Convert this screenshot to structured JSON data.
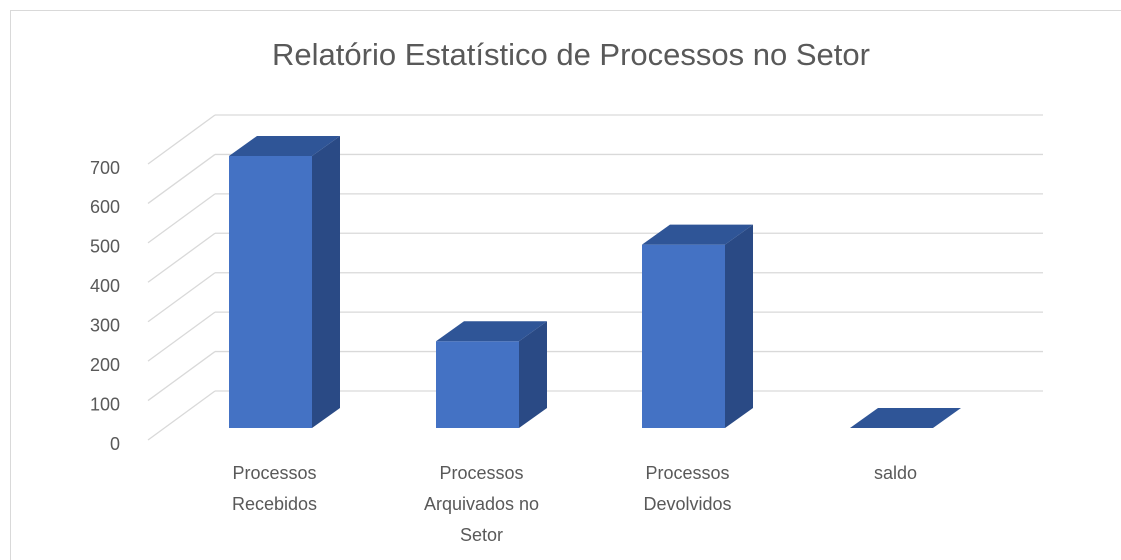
{
  "chart_data": {
    "type": "bar3d",
    "title": "Relatório Estatístico de Processos no Setor",
    "categories": [
      "Processos Recebidos",
      "Processos Arquivados no Setor",
      "Processos Devolvidos",
      "saldo"
    ],
    "values": [
      690,
      220,
      465,
      0
    ],
    "color": "#4472c4",
    "ylim": [
      0,
      700
    ],
    "yticks": [
      0,
      100,
      200,
      300,
      400,
      500,
      600,
      700
    ],
    "grid": true
  }
}
